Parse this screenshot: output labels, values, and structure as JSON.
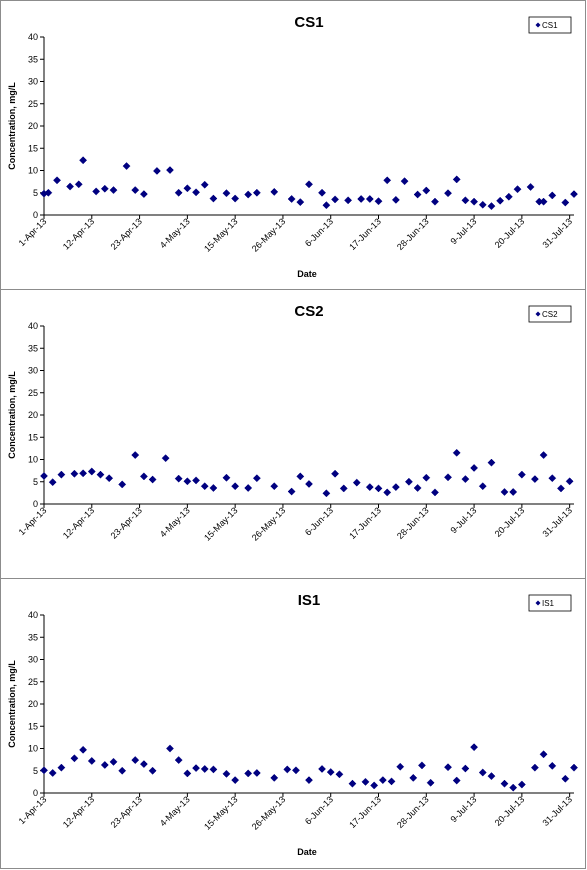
{
  "chart_data": [
    {
      "type": "scatter",
      "title": "CS1",
      "xlabel": "Date",
      "ylabel": "Concentration, mg/L",
      "ylim": [
        0,
        40
      ],
      "yticks": [
        0,
        5,
        10,
        15,
        20,
        25,
        30,
        35,
        40
      ],
      "xlim": [
        "2013-04-01",
        "2013-08-01"
      ],
      "xticks": [
        "1-Apr-13",
        "12-Apr-13",
        "23-Apr-13",
        "4-May-13",
        "15-May-13",
        "26-May-13",
        "6-Jun-13",
        "17-Jun-13",
        "28-Jun-13",
        "9-Jul-13",
        "20-Jul-13",
        "31-Jul-13"
      ],
      "legend_position": "top-right",
      "grid": false,
      "marker_color": "#000080",
      "series": [
        {
          "name": "CS1",
          "x": [
            "2013-04-01",
            "2013-04-02",
            "2013-04-04",
            "2013-04-07",
            "2013-04-09",
            "2013-04-10",
            "2013-04-13",
            "2013-04-15",
            "2013-04-17",
            "2013-04-20",
            "2013-04-22",
            "2013-04-24",
            "2013-04-27",
            "2013-04-30",
            "2013-05-02",
            "2013-05-04",
            "2013-05-06",
            "2013-05-08",
            "2013-05-10",
            "2013-05-13",
            "2013-05-15",
            "2013-05-18",
            "2013-05-20",
            "2013-05-24",
            "2013-05-28",
            "2013-05-30",
            "2013-06-01",
            "2013-06-04",
            "2013-06-05",
            "2013-06-07",
            "2013-06-10",
            "2013-06-13",
            "2013-06-15",
            "2013-06-17",
            "2013-06-19",
            "2013-06-21",
            "2013-06-23",
            "2013-06-26",
            "2013-06-28",
            "2013-06-30",
            "2013-07-03",
            "2013-07-05",
            "2013-07-07",
            "2013-07-09",
            "2013-07-11",
            "2013-07-13",
            "2013-07-15",
            "2013-07-17",
            "2013-07-19",
            "2013-07-22",
            "2013-07-24",
            "2013-07-25",
            "2013-07-27",
            "2013-07-30",
            "2013-08-01"
          ],
          "y": [
            4.8,
            5.0,
            7.8,
            6.4,
            6.9,
            12.3,
            5.3,
            5.9,
            5.6,
            11.0,
            5.6,
            4.7,
            9.9,
            10.1,
            5.0,
            6.0,
            5.1,
            6.8,
            3.7,
            4.9,
            3.7,
            4.6,
            5.0,
            5.2,
            3.6,
            2.9,
            6.9,
            5.0,
            2.2,
            3.5,
            3.3,
            3.6,
            3.6,
            3.1,
            7.8,
            3.4,
            7.6,
            4.6,
            5.5,
            3.0,
            4.9,
            8.0,
            3.3,
            3.0,
            2.3,
            2.0,
            3.2,
            4.1,
            5.8,
            6.3,
            3.0,
            3.0,
            4.4,
            2.8,
            4.7
          ]
        }
      ]
    },
    {
      "type": "scatter",
      "title": "CS2",
      "xlabel": "",
      "ylabel": "Concentration, mg/L",
      "ylim": [
        0,
        40
      ],
      "yticks": [
        0,
        5,
        10,
        15,
        20,
        25,
        30,
        35,
        40
      ],
      "xlim": [
        "2013-04-01",
        "2013-08-01"
      ],
      "xticks": [
        "1-Apr-13",
        "12-Apr-13",
        "23-Apr-13",
        "4-May-13",
        "15-May-13",
        "26-May-13",
        "6-Jun-13",
        "17-Jun-13",
        "28-Jun-13",
        "9-Jul-13",
        "20-Jul-13",
        "31-Jul-13"
      ],
      "legend_position": "top-right",
      "grid": false,
      "marker_color": "#000080",
      "series": [
        {
          "name": "CS2",
          "x": [
            "2013-04-01",
            "2013-04-03",
            "2013-04-05",
            "2013-04-08",
            "2013-04-10",
            "2013-04-12",
            "2013-04-14",
            "2013-04-16",
            "2013-04-19",
            "2013-04-22",
            "2013-04-24",
            "2013-04-26",
            "2013-04-29",
            "2013-05-02",
            "2013-05-04",
            "2013-05-06",
            "2013-05-08",
            "2013-05-10",
            "2013-05-13",
            "2013-05-15",
            "2013-05-18",
            "2013-05-20",
            "2013-05-24",
            "2013-05-28",
            "2013-05-30",
            "2013-06-01",
            "2013-06-05",
            "2013-06-07",
            "2013-06-09",
            "2013-06-12",
            "2013-06-15",
            "2013-06-17",
            "2013-06-19",
            "2013-06-21",
            "2013-06-24",
            "2013-06-26",
            "2013-06-28",
            "2013-06-30",
            "2013-07-03",
            "2013-07-05",
            "2013-07-07",
            "2013-07-09",
            "2013-07-11",
            "2013-07-13",
            "2013-07-16",
            "2013-07-18",
            "2013-07-20",
            "2013-07-23",
            "2013-07-25",
            "2013-07-27",
            "2013-07-29",
            "2013-07-31"
          ],
          "y": [
            6.3,
            4.9,
            6.6,
            6.8,
            6.9,
            7.3,
            6.6,
            5.8,
            4.4,
            11.0,
            6.2,
            5.5,
            10.3,
            5.7,
            5.1,
            5.3,
            4.0,
            3.6,
            5.9,
            4.0,
            3.6,
            5.8,
            4.0,
            2.8,
            6.2,
            4.5,
            2.4,
            6.8,
            3.5,
            4.8,
            3.8,
            3.5,
            2.6,
            3.8,
            5.0,
            3.6,
            5.9,
            2.6,
            6.0,
            11.5,
            5.6,
            8.1,
            4.0,
            9.3,
            2.7,
            2.7,
            6.6,
            5.6,
            11.0,
            5.8,
            3.5,
            5.1
          ]
        }
      ]
    },
    {
      "type": "scatter",
      "title": "IS1",
      "xlabel": "Date",
      "ylabel": "Concentration, mg/L",
      "ylim": [
        0,
        40
      ],
      "yticks": [
        0,
        5,
        10,
        15,
        20,
        25,
        30,
        35,
        40
      ],
      "xlim": [
        "2013-04-01",
        "2013-08-01"
      ],
      "xticks": [
        "1-Apr-13",
        "12-Apr-13",
        "23-Apr-13",
        "4-May-13",
        "15-May-13",
        "26-May-13",
        "6-Jun-13",
        "17-Jun-13",
        "28-Jun-13",
        "9-Jul-13",
        "20-Jul-13",
        "31-Jul-13"
      ],
      "legend_position": "top-right",
      "grid": false,
      "marker_color": "#000080",
      "series": [
        {
          "name": "IS1",
          "x": [
            "2013-04-01",
            "2013-04-03",
            "2013-04-05",
            "2013-04-08",
            "2013-04-10",
            "2013-04-12",
            "2013-04-15",
            "2013-04-17",
            "2013-04-19",
            "2013-04-22",
            "2013-04-24",
            "2013-04-26",
            "2013-04-30",
            "2013-05-02",
            "2013-05-04",
            "2013-05-06",
            "2013-05-08",
            "2013-05-10",
            "2013-05-13",
            "2013-05-15",
            "2013-05-18",
            "2013-05-20",
            "2013-05-24",
            "2013-05-27",
            "2013-05-29",
            "2013-06-01",
            "2013-06-04",
            "2013-06-06",
            "2013-06-08",
            "2013-06-11",
            "2013-06-14",
            "2013-06-16",
            "2013-06-18",
            "2013-06-20",
            "2013-06-22",
            "2013-06-25",
            "2013-06-27",
            "2013-06-29",
            "2013-07-03",
            "2013-07-05",
            "2013-07-07",
            "2013-07-09",
            "2013-07-11",
            "2013-07-13",
            "2013-07-16",
            "2013-07-18",
            "2013-07-20",
            "2013-07-23",
            "2013-07-25",
            "2013-07-27",
            "2013-07-30",
            "2013-08-01"
          ],
          "y": [
            5.1,
            4.5,
            5.7,
            7.8,
            9.7,
            7.2,
            6.3,
            7.0,
            5.0,
            7.4,
            6.5,
            5.0,
            10.0,
            7.4,
            4.4,
            5.6,
            5.4,
            5.3,
            4.3,
            2.9,
            4.4,
            4.5,
            3.4,
            5.3,
            5.1,
            2.9,
            5.4,
            4.7,
            4.2,
            2.1,
            2.5,
            1.7,
            2.9,
            2.6,
            5.9,
            3.4,
            6.2,
            2.3,
            5.8,
            2.8,
            5.5,
            10.3,
            4.6,
            3.8,
            2.1,
            1.2,
            1.9,
            5.7,
            8.7,
            6.1,
            3.2,
            5.7
          ]
        }
      ]
    }
  ]
}
